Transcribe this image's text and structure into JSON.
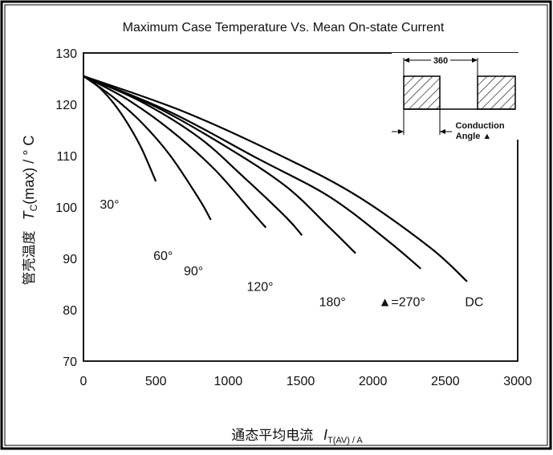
{
  "chart_data": {
    "type": "line",
    "title": "Maximum Case Temperature Vs. Mean On-state Current",
    "xlabel": {
      "cn": "通态平均电流",
      "symbol": "I",
      "sub": "T(AV)",
      "unit": "/ A"
    },
    "ylabel": {
      "cn": "管壳温度",
      "symbol": "T",
      "sub": "C",
      "rest": "(max) / ° C"
    },
    "xlim": [
      0,
      3000
    ],
    "ylim": [
      70,
      130
    ],
    "xticks": [
      "0",
      "500",
      "1000",
      "1500",
      "2000",
      "2500",
      "3000"
    ],
    "yticks": [
      "70",
      "80",
      "90",
      "100",
      "110",
      "120",
      "130"
    ],
    "grid": true,
    "series": [
      {
        "name": "30°",
        "x": [
          0,
          100,
          200,
          300,
          400,
          500
        ],
        "y": [
          125.5,
          123.5,
          120.5,
          116.5,
          111.5,
          105
        ]
      },
      {
        "name": "60°",
        "x": [
          0,
          200,
          400,
          600,
          800,
          880
        ],
        "y": [
          125.5,
          121.5,
          116.5,
          110,
          101.5,
          97.5
        ]
      },
      {
        "name": "90°",
        "x": [
          0,
          300,
          600,
          900,
          1150,
          1260
        ],
        "y": [
          125.5,
          121,
          115,
          107.5,
          99.5,
          96
        ]
      },
      {
        "name": "120°",
        "x": [
          0,
          400,
          800,
          1100,
          1400,
          1510
        ],
        "y": [
          125.5,
          120.5,
          113.5,
          106,
          98,
          94.5
        ]
      },
      {
        "name": "180°",
        "x": [
          0,
          500,
          1000,
          1400,
          1700,
          1880
        ],
        "y": [
          125.5,
          119.5,
          111.5,
          104,
          96,
          91
        ]
      },
      {
        "name": "▲=270°",
        "x": [
          0,
          600,
          1200,
          1700,
          2100,
          2330
        ],
        "y": [
          125.5,
          118.5,
          109.5,
          102,
          93.5,
          88
        ]
      },
      {
        "name": "DC",
        "x": [
          0,
          700,
          1400,
          1900,
          2400,
          2650
        ],
        "y": [
          125.5,
          118.5,
          109.5,
          102,
          92,
          85.5
        ]
      }
    ],
    "labels": [
      {
        "text": "30°",
        "x": 180,
        "y": 100
      },
      {
        "text": "60°",
        "x": 550,
        "y": 90
      },
      {
        "text": "90°",
        "x": 760,
        "y": 87
      },
      {
        "text": "120°",
        "x": 1220,
        "y": 84
      },
      {
        "text": "180°",
        "x": 1720,
        "y": 81
      },
      {
        "text": "▲=270°",
        "x": 2200,
        "y": 81
      },
      {
        "text": "DC",
        "x": 2700,
        "y": 81
      }
    ],
    "inset": {
      "dimension": "360",
      "caption_line1": "Conduction",
      "caption_line2": "Angle ▲"
    }
  }
}
